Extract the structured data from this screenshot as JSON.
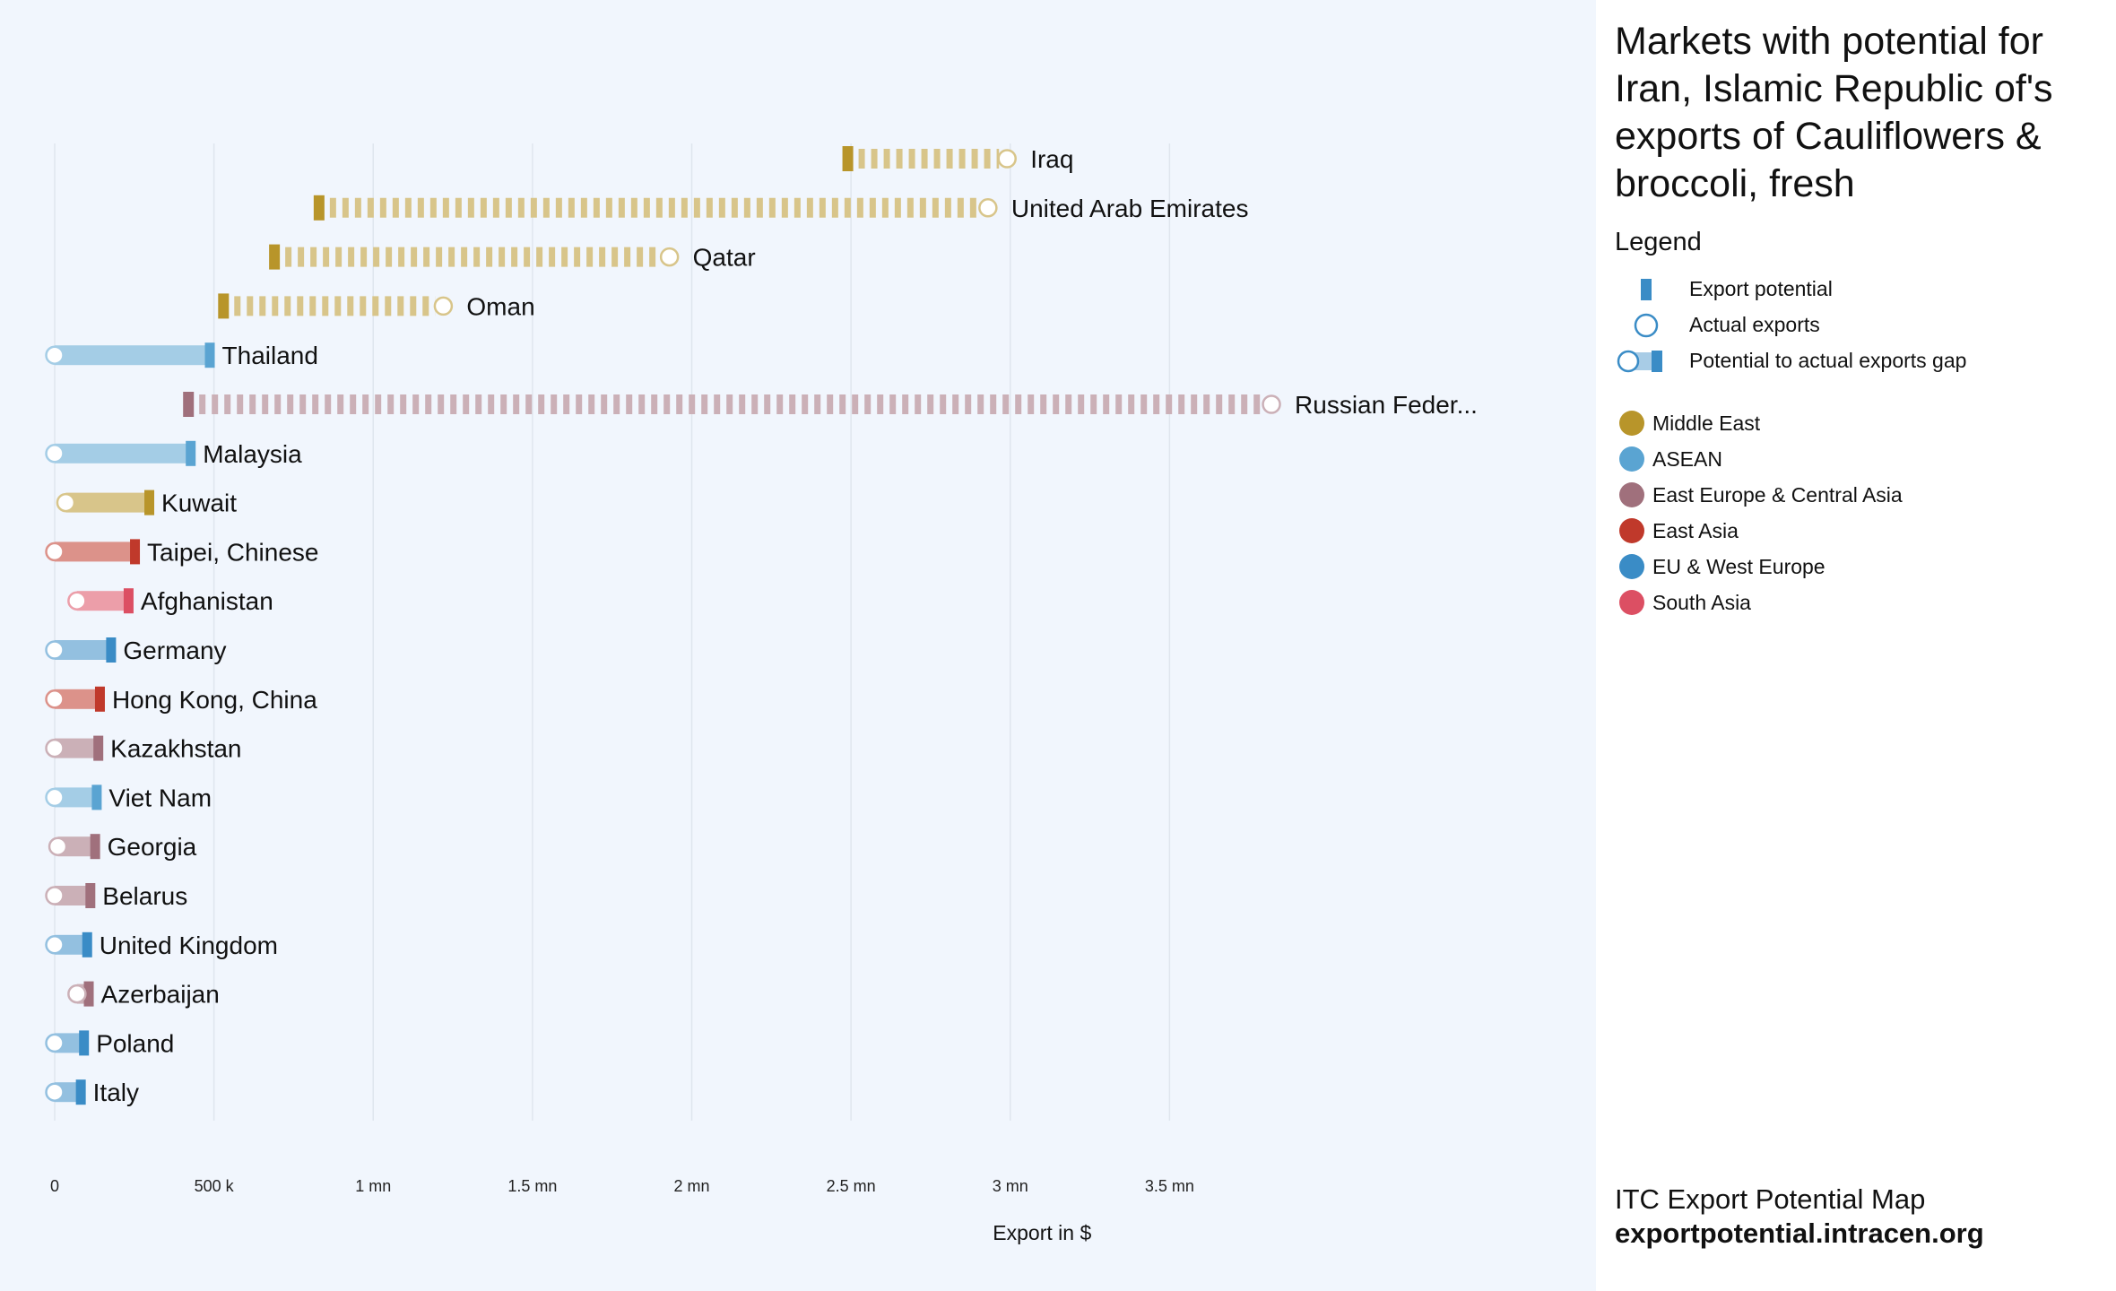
{
  "chart_data": {
    "type": "bar",
    "title": "Markets with potential for Iran, Islamic Republic of's exports of Cauliflowers & broccoli, fresh",
    "xlabel": "Export in $",
    "xlim": [
      0,
      4000000
    ],
    "x_ticks": [
      {
        "value": 0,
        "label": "0"
      },
      {
        "value": 500000,
        "label": "500 k"
      },
      {
        "value": 1000000,
        "label": "1 mn"
      },
      {
        "value": 1500000,
        "label": "1.5 mn"
      },
      {
        "value": 2000000,
        "label": "2 mn"
      },
      {
        "value": 2500000,
        "label": "2.5 mn"
      },
      {
        "value": 3000000,
        "label": "3 mn"
      },
      {
        "value": 3500000,
        "label": "3.5 mn"
      }
    ],
    "grid": true,
    "legend_position": "right",
    "series": [
      {
        "name": "Export potential",
        "field": "export_potential"
      },
      {
        "name": "Actual exports",
        "field": "actual_exports"
      }
    ],
    "markets": [
      {
        "name": "Iraq",
        "region": "Middle East",
        "export_potential": 2490000,
        "actual_exports": 2990000
      },
      {
        "name": "United Arab Emirates",
        "region": "Middle East",
        "export_potential": 830000,
        "actual_exports": 2930000
      },
      {
        "name": "Qatar",
        "region": "Middle East",
        "export_potential": 690000,
        "actual_exports": 1930000
      },
      {
        "name": "Oman",
        "region": "Middle East",
        "export_potential": 530000,
        "actual_exports": 1220000
      },
      {
        "name": "Thailand",
        "region": "ASEAN",
        "export_potential": 480000,
        "actual_exports": 0
      },
      {
        "name": "Russian Feder...",
        "region": "East Europe & Central Asia",
        "export_potential": 420000,
        "actual_exports": 3820000
      },
      {
        "name": "Malaysia",
        "region": "ASEAN",
        "export_potential": 420000,
        "actual_exports": 0
      },
      {
        "name": "Kuwait",
        "region": "Middle East",
        "export_potential": 290000,
        "actual_exports": 35000
      },
      {
        "name": "Taipei, Chinese",
        "region": "East Asia",
        "export_potential": 245000,
        "actual_exports": 0
      },
      {
        "name": "Afghanistan",
        "region": "South Asia",
        "export_potential": 225000,
        "actual_exports": 70000
      },
      {
        "name": "Germany",
        "region": "EU & West Europe",
        "export_potential": 170000,
        "actual_exports": 0
      },
      {
        "name": "Hong Kong, China",
        "region": "East Asia",
        "export_potential": 135000,
        "actual_exports": 0
      },
      {
        "name": "Kazakhstan",
        "region": "East Europe & Central Asia",
        "export_potential": 130000,
        "actual_exports": 0
      },
      {
        "name": "Viet Nam",
        "region": "ASEAN",
        "export_potential": 125000,
        "actual_exports": 0
      },
      {
        "name": "Georgia",
        "region": "East Europe & Central Asia",
        "export_potential": 120000,
        "actual_exports": 10000
      },
      {
        "name": "Belarus",
        "region": "East Europe & Central Asia",
        "export_potential": 105000,
        "actual_exports": 0
      },
      {
        "name": "United Kingdom",
        "region": "EU & West Europe",
        "export_potential": 95000,
        "actual_exports": 0
      },
      {
        "name": "Azerbaijan",
        "region": "East Europe & Central Asia",
        "export_potential": 100000,
        "actual_exports": 70000
      },
      {
        "name": "Poland",
        "region": "EU & West Europe",
        "export_potential": 85000,
        "actual_exports": 0
      },
      {
        "name": "Italy",
        "region": "EU & West Europe",
        "export_potential": 75000,
        "actual_exports": 0
      }
    ]
  },
  "sidebar": {
    "title": "Markets with potential for Iran, Islamic Republic of's exports of Cauliflowers & broccoli, fresh",
    "legend_heading": "Legend",
    "legend_items": [
      {
        "label": "Export potential",
        "icon": "potential-bar-icon"
      },
      {
        "label": "Actual exports",
        "icon": "actual-circle-icon"
      },
      {
        "label": "Potential to actual exports gap",
        "icon": "gap-bar-icon"
      }
    ],
    "regions": [
      {
        "label": "Middle East",
        "color": "#b8952a"
      },
      {
        "label": "ASEAN",
        "color": "#5aa4d2"
      },
      {
        "label": "East Europe & Central Asia",
        "color": "#a0707c"
      },
      {
        "label": "East Asia",
        "color": "#c0392b"
      },
      {
        "label": "EU & West Europe",
        "color": "#3a8cc6"
      },
      {
        "label": "South Asia",
        "color": "#dc4f63"
      }
    ],
    "legend_accent": "#3a8cc6",
    "legend_accent_light": "#a8cce6"
  },
  "footer": {
    "line1": "ITC Export Potential Map",
    "line2": "exportpotential.intracen.org"
  }
}
